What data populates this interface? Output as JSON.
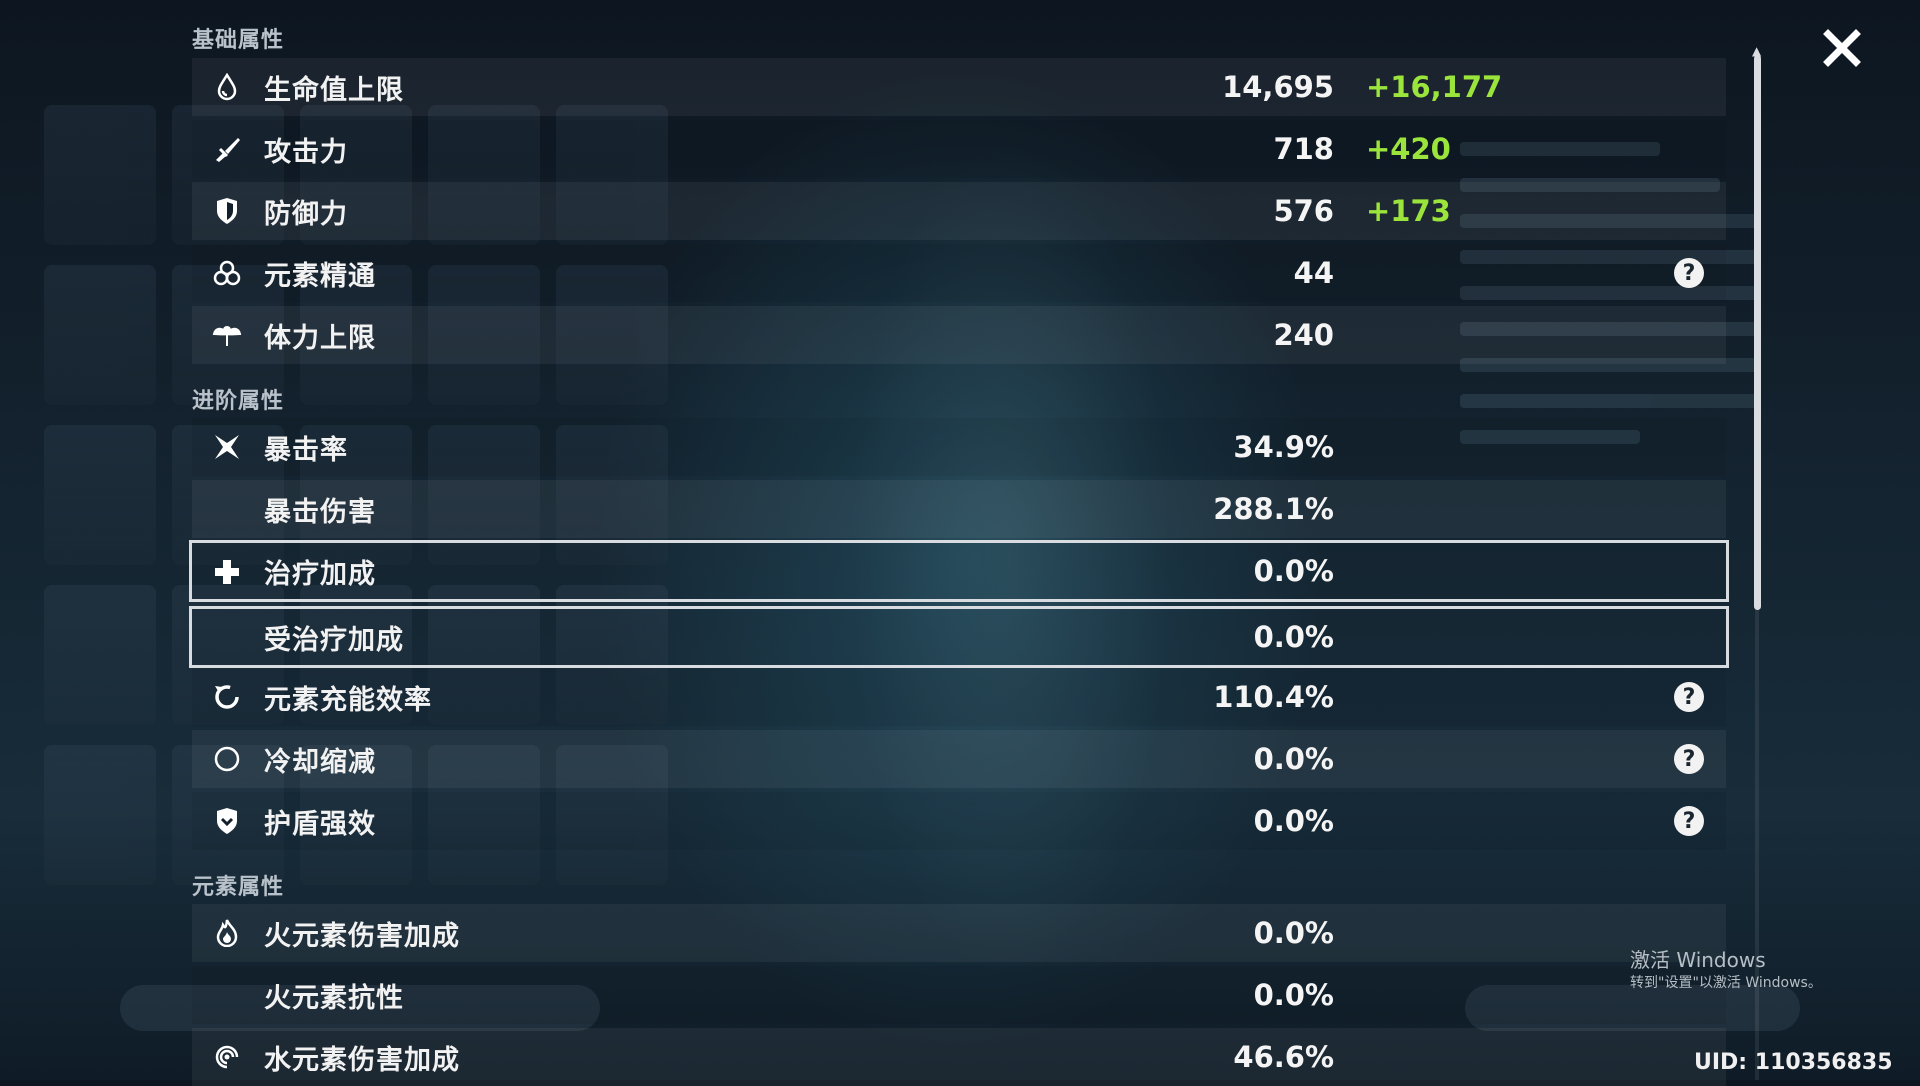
{
  "sections": {
    "base": "基础属性",
    "advanced": "进阶属性",
    "elemental": "元素属性"
  },
  "stats": [
    {
      "label": "生命值上限",
      "value": "14,695",
      "bonus": "+16,177",
      "icon": "hp-drop-icon"
    },
    {
      "label": "攻击力",
      "value": "718",
      "bonus": "+420",
      "icon": "sword-icon"
    },
    {
      "label": "防御力",
      "value": "576",
      "bonus": "+173",
      "icon": "shield-icon"
    },
    {
      "label": "元素精通",
      "value": "44",
      "bonus": "",
      "icon": "elemental-mastery-icon",
      "help": "?"
    },
    {
      "label": "体力上限",
      "value": "240",
      "bonus": "",
      "icon": "stamina-icon"
    },
    {
      "label": "暴击率",
      "value": "34.9%",
      "bonus": "",
      "icon": "crit-rate-icon"
    },
    {
      "label": "暴击伤害",
      "value": "288.1%",
      "bonus": "",
      "icon": ""
    },
    {
      "label": "治疗加成",
      "value": "0.0%",
      "bonus": "",
      "icon": "healing-cross-icon"
    },
    {
      "label": "受治疗加成",
      "value": "0.0%",
      "bonus": "",
      "icon": ""
    },
    {
      "label": "元素充能效率",
      "value": "110.4%",
      "bonus": "",
      "icon": "energy-recharge-icon",
      "help": "?"
    },
    {
      "label": "冷却缩减",
      "value": "0.0%",
      "bonus": "",
      "icon": "cooldown-moon-icon",
      "help": "?"
    },
    {
      "label": "护盾强效",
      "value": "0.0%",
      "bonus": "",
      "icon": "shield-strength-icon",
      "help": "?"
    },
    {
      "label": "火元素伤害加成",
      "value": "0.0%",
      "bonus": "",
      "icon": "pyro-flame-icon"
    },
    {
      "label": "火元素抗性",
      "value": "0.0%",
      "bonus": "",
      "icon": ""
    },
    {
      "label": "水元素伤害加成",
      "value": "46.6%",
      "bonus": "",
      "icon": "hydro-swirl-icon"
    }
  ],
  "watermark": {
    "line1": "激活 Windows",
    "line2": "转到\"设置\"以激活 Windows。"
  },
  "uid": "UID: 110356835",
  "colors": {
    "bonus": "#9be43c",
    "highlight_border": "#d8dce0"
  }
}
